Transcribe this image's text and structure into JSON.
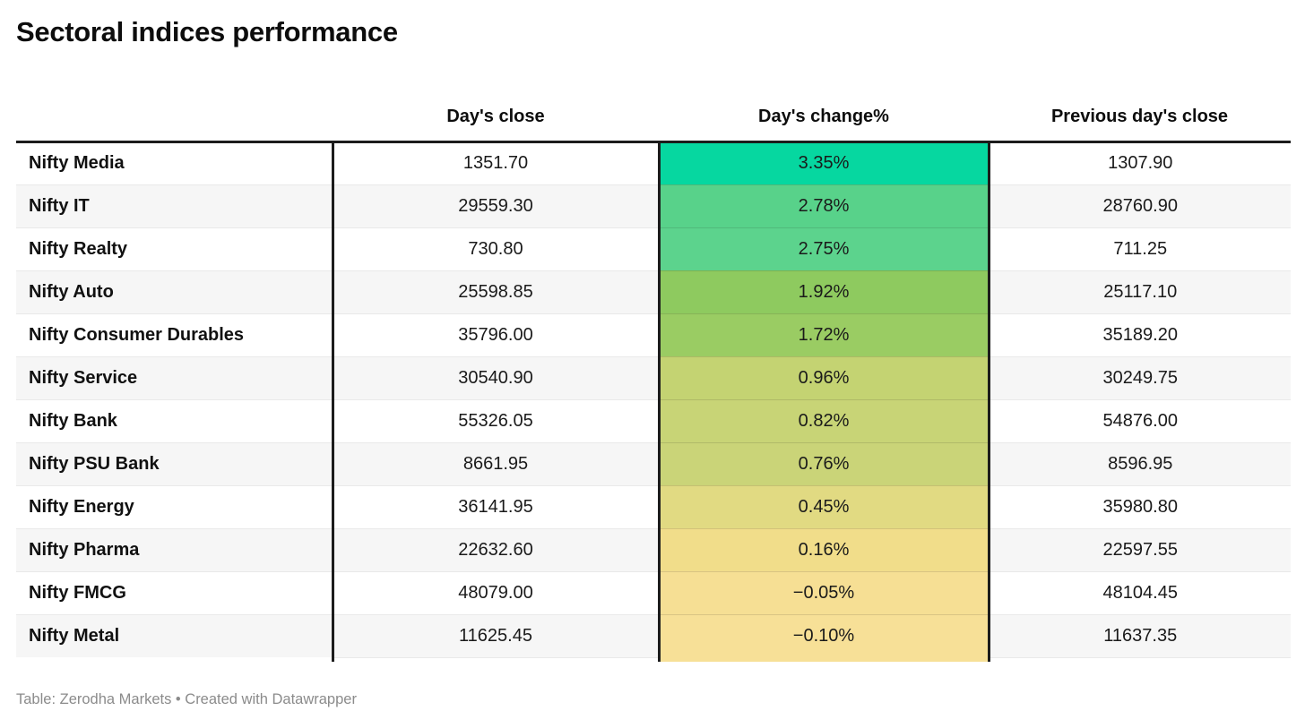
{
  "meta": {
    "title": "Sectoral indices performance",
    "footer": "Table: Zerodha Markets • Created with Datawrapper"
  },
  "table": {
    "column_headers": {
      "label": "",
      "close": "Day's close",
      "change": "Day's change%",
      "prev": "Previous day's close"
    },
    "rows": [
      {
        "label": "Nifty Media",
        "close": "1351.70",
        "change": "3.35%",
        "prev": "1307.90",
        "change_color": "#06d7a0"
      },
      {
        "label": "Nifty IT",
        "close": "29559.30",
        "change": "2.78%",
        "prev": "28760.90",
        "change_color": "#58d28a"
      },
      {
        "label": "Nifty Realty",
        "close": "730.80",
        "change": "2.75%",
        "prev": "711.25",
        "change_color": "#5cd38d"
      },
      {
        "label": "Nifty Auto",
        "close": "25598.85",
        "change": "1.92%",
        "prev": "25117.10",
        "change_color": "#8eca5f"
      },
      {
        "label": "Nifty Consumer Durables",
        "close": "35796.00",
        "change": "1.72%",
        "prev": "35189.20",
        "change_color": "#9acc63"
      },
      {
        "label": "Nifty Service",
        "close": "30540.90",
        "change": "0.96%",
        "prev": "30249.75",
        "change_color": "#c4d372"
      },
      {
        "label": "Nifty Bank",
        "close": "55326.05",
        "change": "0.82%",
        "prev": "54876.00",
        "change_color": "#c8d476"
      },
      {
        "label": "Nifty PSU Bank",
        "close": "8661.95",
        "change": "0.76%",
        "prev": "8596.95",
        "change_color": "#cad478"
      },
      {
        "label": "Nifty Energy",
        "close": "36141.95",
        "change": "0.45%",
        "prev": "35980.80",
        "change_color": "#e1da82"
      },
      {
        "label": "Nifty Pharma",
        "close": "22632.60",
        "change": "0.16%",
        "prev": "22597.55",
        "change_color": "#f1dd8a"
      },
      {
        "label": "Nifty FMCG",
        "close": "48079.00",
        "change": "−0.05%",
        "prev": "48104.45",
        "change_color": "#f6df94"
      },
      {
        "label": "Nifty Metal",
        "close": "11625.45",
        "change": "−0.10%",
        "prev": "11637.35",
        "change_color": "#f7e097"
      }
    ]
  },
  "colors": {
    "heatmap_max": "#06d7a0",
    "heatmap_min": "#f7e097",
    "rule_black": "#1c1c1c",
    "stripe_gray": "#f6f6f6",
    "footer_gray": "#8b8b8b"
  },
  "chart_data": {
    "type": "table",
    "title": "Sectoral indices performance",
    "columns": [
      "",
      "Day's close",
      "Day's change%",
      "Previous day's close"
    ],
    "rows": [
      [
        "Nifty Media",
        1351.7,
        3.35,
        1307.9
      ],
      [
        "Nifty IT",
        29559.3,
        2.78,
        28760.9
      ],
      [
        "Nifty Realty",
        730.8,
        2.75,
        711.25
      ],
      [
        "Nifty Auto",
        25598.85,
        1.92,
        25117.1
      ],
      [
        "Nifty Consumer Durables",
        35796.0,
        1.72,
        35189.2
      ],
      [
        "Nifty Service",
        30540.9,
        0.96,
        30249.75
      ],
      [
        "Nifty Bank",
        55326.05,
        0.82,
        54876.0
      ],
      [
        "Nifty PSU Bank",
        8661.95,
        0.76,
        8596.95
      ],
      [
        "Nifty Energy",
        36141.95,
        0.45,
        35980.8
      ],
      [
        "Nifty Pharma",
        22632.6,
        0.16,
        22597.55
      ],
      [
        "Nifty FMCG",
        48079.0,
        -0.05,
        48104.45
      ],
      [
        "Nifty Metal",
        11625.45,
        -0.1,
        11637.35
      ]
    ],
    "heatmap": {
      "column": "Day's change%",
      "unit": "%",
      "domain": [
        -0.1,
        3.35
      ],
      "scale": [
        "#f7e097",
        "#06d7a0"
      ]
    },
    "layout": {
      "row_striping": true,
      "values_centered": true
    },
    "source": "Table: Zerodha Markets",
    "attribution": "Created with Datawrapper"
  }
}
